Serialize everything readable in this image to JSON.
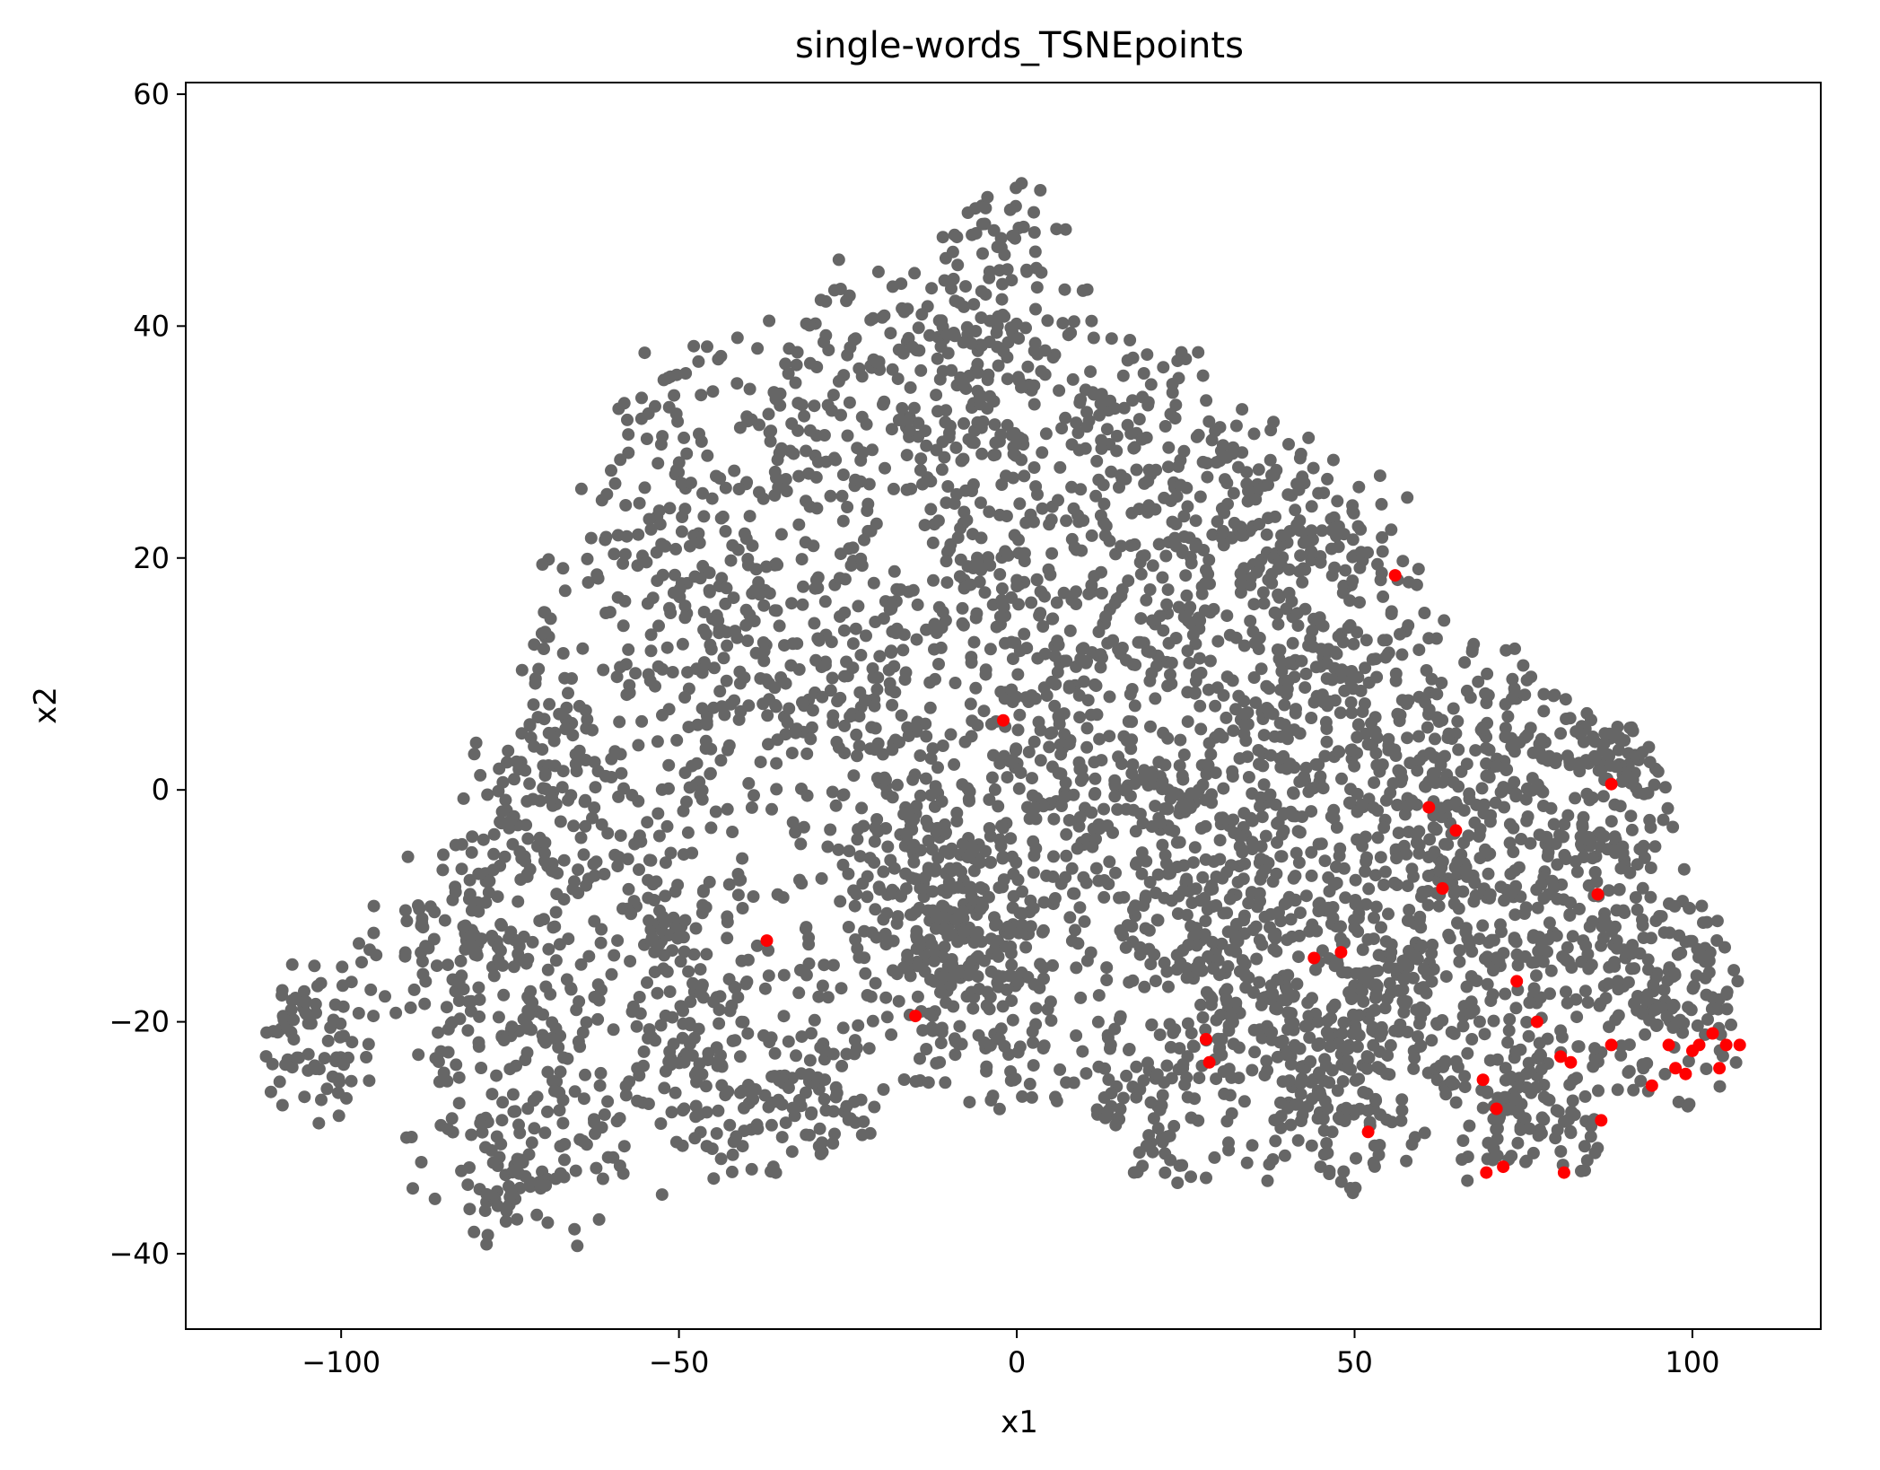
{
  "chart_data": {
    "type": "scatter",
    "title": "single-words_TSNEpoints",
    "xlabel": "x1",
    "ylabel": "x2",
    "xlim": [
      -123,
      119
    ],
    "ylim": [
      -46.5,
      61
    ],
    "xticks": [
      -100,
      -50,
      0,
      50,
      100
    ],
    "xtick_labels": [
      "−100",
      "−50",
      "0",
      "50",
      "100"
    ],
    "yticks": [
      -40,
      -20,
      0,
      20,
      40,
      60
    ],
    "ytick_labels": [
      "−40",
      "−20",
      "0",
      "20",
      "40",
      "60"
    ],
    "grid": false,
    "legend": "none",
    "colors": {
      "base": "#666666",
      "highlight": "#ff0000"
    },
    "density_regions": [
      {
        "cx": -105,
        "cy": -21,
        "sx": 5,
        "sy": 4,
        "n": 90
      },
      {
        "cx": -80,
        "cy": -14,
        "sx": 7,
        "sy": 7,
        "n": 170
      },
      {
        "cx": -75,
        "cy": -33,
        "sx": 6,
        "sy": 4,
        "n": 80
      },
      {
        "cx": -70,
        "cy": 3,
        "sx": 6,
        "sy": 9,
        "n": 160
      },
      {
        "cx": -68,
        "cy": -25,
        "sx": 6,
        "sy": 6,
        "n": 70
      },
      {
        "cx": -52,
        "cy": 25,
        "sx": 7,
        "sy": 8,
        "n": 150
      },
      {
        "cx": -52,
        "cy": -10,
        "sx": 7,
        "sy": 8,
        "n": 170
      },
      {
        "cx": -45,
        "cy": -25,
        "sx": 7,
        "sy": 5,
        "n": 110
      },
      {
        "cx": -40,
        "cy": 10,
        "sx": 8,
        "sy": 7,
        "n": 160
      },
      {
        "cx": -30,
        "cy": -25,
        "sx": 6,
        "sy": 5,
        "n": 110
      },
      {
        "cx": -30,
        "cy": 30,
        "sx": 8,
        "sy": 8,
        "n": 140
      },
      {
        "cx": -20,
        "cy": 5,
        "sx": 8,
        "sy": 8,
        "n": 160
      },
      {
        "cx": -12,
        "cy": -10,
        "sx": 7,
        "sy": 6,
        "n": 230
      },
      {
        "cx": -10,
        "cy": 35,
        "sx": 8,
        "sy": 6,
        "n": 140
      },
      {
        "cx": -5,
        "cy": -18,
        "sx": 7,
        "sy": 6,
        "n": 130
      },
      {
        "cx": -5,
        "cy": 20,
        "sx": 8,
        "sy": 7,
        "n": 160
      },
      {
        "cx": 0,
        "cy": 45,
        "sx": 6,
        "sy": 5,
        "n": 70
      },
      {
        "cx": 5,
        "cy": 0,
        "sx": 8,
        "sy": 7,
        "n": 170
      },
      {
        "cx": 15,
        "cy": 15,
        "sx": 8,
        "sy": 8,
        "n": 160
      },
      {
        "cx": 15,
        "cy": 32,
        "sx": 7,
        "sy": 6,
        "n": 110
      },
      {
        "cx": 20,
        "cy": -25,
        "sx": 6,
        "sy": 5,
        "n": 110
      },
      {
        "cx": 25,
        "cy": -5,
        "sx": 8,
        "sy": 7,
        "n": 180
      },
      {
        "cx": 33,
        "cy": 22,
        "sx": 7,
        "sy": 6,
        "n": 170
      },
      {
        "cx": 35,
        "cy": -15,
        "sx": 7,
        "sy": 6,
        "n": 200
      },
      {
        "cx": 40,
        "cy": 5,
        "sx": 8,
        "sy": 7,
        "n": 160
      },
      {
        "cx": 45,
        "cy": -25,
        "sx": 6,
        "sy": 5,
        "n": 150
      },
      {
        "cx": 50,
        "cy": 15,
        "sx": 6,
        "sy": 7,
        "n": 130
      },
      {
        "cx": 55,
        "cy": -17,
        "sx": 6,
        "sy": 5,
        "n": 170
      },
      {
        "cx": 60,
        "cy": 0,
        "sx": 7,
        "sy": 7,
        "n": 170
      },
      {
        "cx": 70,
        "cy": -10,
        "sx": 7,
        "sy": 7,
        "n": 170
      },
      {
        "cx": 75,
        "cy": -27,
        "sx": 6,
        "sy": 4,
        "n": 130
      },
      {
        "cx": 78,
        "cy": 5,
        "sx": 7,
        "sy": 6,
        "n": 110
      },
      {
        "cx": 85,
        "cy": -12,
        "sx": 6,
        "sy": 6,
        "n": 140
      },
      {
        "cx": 90,
        "cy": 2,
        "sx": 4,
        "sy": 3,
        "n": 70
      },
      {
        "cx": 98,
        "cy": -18,
        "sx": 5,
        "sy": 5,
        "n": 130
      }
    ],
    "highlight_points": [
      [
        -37,
        -13
      ],
      [
        -15,
        -19.5
      ],
      [
        -2,
        6
      ],
      [
        28,
        -21.5
      ],
      [
        28.5,
        -23.5
      ],
      [
        44,
        -14.5
      ],
      [
        48,
        -14
      ],
      [
        52,
        -29.5
      ],
      [
        56,
        18.5
      ],
      [
        61,
        -1.5
      ],
      [
        63,
        -8.5
      ],
      [
        65,
        -3.5
      ],
      [
        69,
        -25
      ],
      [
        69.5,
        -33
      ],
      [
        71,
        -27.5
      ],
      [
        72,
        -32.5
      ],
      [
        74,
        -16.5
      ],
      [
        77,
        -20
      ],
      [
        80.5,
        -23
      ],
      [
        81,
        -33
      ],
      [
        82,
        -23.5
      ],
      [
        86,
        -9
      ],
      [
        86.5,
        -28.5
      ],
      [
        88,
        -22
      ],
      [
        88,
        0.5
      ],
      [
        94,
        -25.5
      ],
      [
        96.5,
        -22
      ],
      [
        97.5,
        -24
      ],
      [
        99,
        -24.5
      ],
      [
        100,
        -22.5
      ],
      [
        101,
        -22
      ],
      [
        103,
        -21
      ],
      [
        104,
        -24
      ],
      [
        105,
        -22
      ],
      [
        107,
        -22
      ]
    ]
  }
}
